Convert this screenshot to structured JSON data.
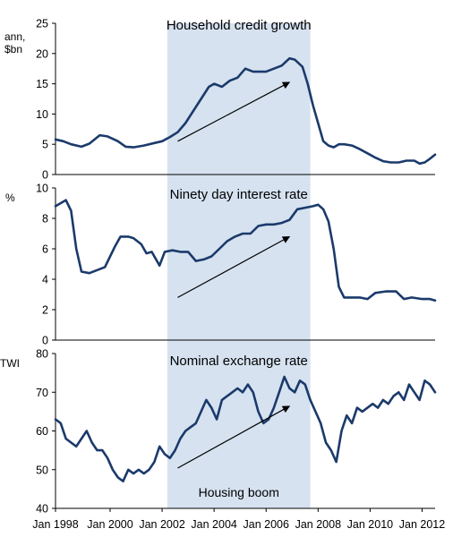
{
  "chart_data": [
    {
      "type": "line",
      "title": "Household credit growth",
      "ylabel": "ann, $bn",
      "ylim": [
        0,
        25
      ],
      "yticks": [
        "0",
        "5",
        "10",
        "15",
        "20",
        "25"
      ],
      "series": [
        {
          "x": [
            1997.9,
            1998.2,
            1998.5,
            1998.9,
            1999.2,
            1999.6,
            1999.9,
            2000.3,
            2000.6,
            2000.9,
            2001.3,
            2001.7,
            2002.0,
            2002.3,
            2002.6,
            2002.9,
            2003.2,
            2003.5,
            2003.8,
            2004.0,
            2004.3,
            2004.6,
            2004.9,
            2005.2,
            2005.5,
            2005.8,
            2006.0,
            2006.3,
            2006.6,
            2006.9,
            2007.1,
            2007.4,
            2007.6,
            2007.8,
            2008.0,
            2008.2,
            2008.4,
            2008.6,
            2008.8,
            2009.0,
            2009.3,
            2009.6,
            2009.9,
            2010.2,
            2010.5,
            2010.8,
            2011.1,
            2011.4,
            2011.7,
            2011.9,
            2012.1,
            2012.3,
            2012.5
          ],
          "values": [
            5.8,
            5.5,
            5.0,
            4.6,
            5.1,
            6.5,
            6.3,
            5.5,
            4.6,
            4.5,
            4.8,
            5.2,
            5.5,
            6.2,
            7.0,
            8.5,
            10.5,
            12.5,
            14.5,
            15.0,
            14.5,
            15.5,
            16.0,
            17.5,
            17.0,
            17.0,
            17.0,
            17.5,
            18.0,
            19.2,
            19.0,
            17.8,
            15.0,
            11.5,
            8.5,
            5.5,
            4.8,
            4.5,
            5.0,
            5.0,
            4.8,
            4.2,
            3.5,
            2.8,
            2.2,
            2.0,
            2.0,
            2.3,
            2.3,
            1.8,
            2.0,
            2.6,
            3.3
          ]
        }
      ],
      "annotations": [
        {
          "type": "arrow"
        }
      ]
    },
    {
      "type": "line",
      "title": "Ninety day interest rate",
      "ylabel": "%",
      "ylim": [
        0,
        10
      ],
      "yticks": [
        "0",
        "2",
        "4",
        "6",
        "8",
        "10"
      ],
      "series": [
        {
          "x": [
            1997.9,
            1998.1,
            1998.3,
            1998.5,
            1998.7,
            1998.9,
            1999.2,
            1999.5,
            1999.8,
            2000.0,
            2000.2,
            2000.4,
            2000.7,
            2000.9,
            2001.2,
            2001.4,
            2001.6,
            2001.9,
            2002.1,
            2002.4,
            2002.7,
            2003.0,
            2003.3,
            2003.6,
            2003.9,
            2004.2,
            2004.5,
            2004.8,
            2005.1,
            2005.4,
            2005.7,
            2006.0,
            2006.3,
            2006.6,
            2006.9,
            2007.2,
            2007.5,
            2007.8,
            2008.0,
            2008.2,
            2008.4,
            2008.6,
            2008.8,
            2009.0,
            2009.3,
            2009.6,
            2009.9,
            2010.2,
            2010.6,
            2011.0,
            2011.3,
            2011.6,
            2012.0,
            2012.3,
            2012.5
          ],
          "values": [
            8.8,
            9.0,
            9.2,
            8.5,
            6.0,
            4.5,
            4.4,
            4.6,
            4.8,
            5.5,
            6.2,
            6.8,
            6.8,
            6.7,
            6.3,
            5.7,
            5.8,
            4.9,
            5.8,
            5.9,
            5.8,
            5.8,
            5.2,
            5.3,
            5.5,
            6.0,
            6.5,
            6.8,
            7.0,
            7.0,
            7.5,
            7.6,
            7.6,
            7.7,
            7.9,
            8.6,
            8.7,
            8.8,
            8.9,
            8.6,
            7.8,
            6.0,
            3.5,
            2.8,
            2.8,
            2.8,
            2.7,
            3.1,
            3.2,
            3.2,
            2.7,
            2.8,
            2.7,
            2.7,
            2.6
          ]
        }
      ],
      "annotations": [
        {
          "type": "arrow"
        }
      ]
    },
    {
      "type": "line",
      "title": "Nominal exchange rate",
      "ylabel": "TWI",
      "ylim": [
        40,
        80
      ],
      "yticks": [
        "40",
        "50",
        "60",
        "70",
        "80"
      ],
      "series": [
        {
          "x": [
            1997.9,
            1998.1,
            1998.3,
            1998.5,
            1998.7,
            1998.9,
            1999.1,
            1999.3,
            1999.5,
            1999.7,
            1999.9,
            2000.1,
            2000.3,
            2000.5,
            2000.7,
            2000.9,
            2001.1,
            2001.3,
            2001.5,
            2001.7,
            2001.9,
            2002.1,
            2002.3,
            2002.5,
            2002.7,
            2002.9,
            2003.1,
            2003.3,
            2003.5,
            2003.7,
            2003.9,
            2004.1,
            2004.3,
            2004.5,
            2004.7,
            2004.9,
            2005.1,
            2005.3,
            2005.5,
            2005.7,
            2005.9,
            2006.1,
            2006.3,
            2006.5,
            2006.7,
            2006.9,
            2007.1,
            2007.3,
            2007.5,
            2007.7,
            2007.9,
            2008.1,
            2008.3,
            2008.5,
            2008.7,
            2008.9,
            2009.1,
            2009.3,
            2009.5,
            2009.7,
            2009.9,
            2010.1,
            2010.3,
            2010.5,
            2010.7,
            2010.9,
            2011.1,
            2011.3,
            2011.5,
            2011.7,
            2011.9,
            2012.1,
            2012.3,
            2012.5
          ],
          "values": [
            63,
            62,
            58,
            57,
            56,
            58,
            60,
            57,
            55,
            55,
            53,
            50,
            48,
            47,
            50,
            49,
            50,
            49,
            50,
            52,
            56,
            54,
            53,
            55,
            58,
            60,
            61,
            62,
            65,
            68,
            66,
            63,
            68,
            69,
            70,
            71,
            70,
            72,
            70,
            65,
            62,
            63,
            66,
            70,
            74,
            71,
            70,
            73,
            72,
            68,
            65,
            62,
            57,
            55,
            52,
            60,
            64,
            62,
            66,
            65,
            66,
            67,
            66,
            68,
            67,
            69,
            70,
            68,
            72,
            70,
            68,
            73,
            72,
            70
          ]
        }
      ],
      "annotations": [
        {
          "type": "arrow"
        },
        {
          "type": "text",
          "text": "Housing boom"
        }
      ]
    }
  ],
  "x_axis": {
    "xlim": [
      1997.9,
      2012.5
    ],
    "ticks": [
      {
        "x": 1997.9,
        "label": "Jan 1998"
      },
      {
        "x": 2000.0,
        "label": "Jan 2000"
      },
      {
        "x": 2002.0,
        "label": "Jan 2002"
      },
      {
        "x": 2004.0,
        "label": "Jan 2004"
      },
      {
        "x": 2006.0,
        "label": "Jan 2006"
      },
      {
        "x": 2008.0,
        "label": "Jan 2008"
      },
      {
        "x": 2010.0,
        "label": "Jan 2010"
      },
      {
        "x": 2012.0,
        "label": "Jan 2012"
      }
    ]
  },
  "shaded_region": {
    "x_start": 2002.2,
    "x_end": 2007.7,
    "color": "#d6e2f0"
  },
  "colors": {
    "line": "#1b3a6b",
    "shade": "#d6e2f0"
  }
}
